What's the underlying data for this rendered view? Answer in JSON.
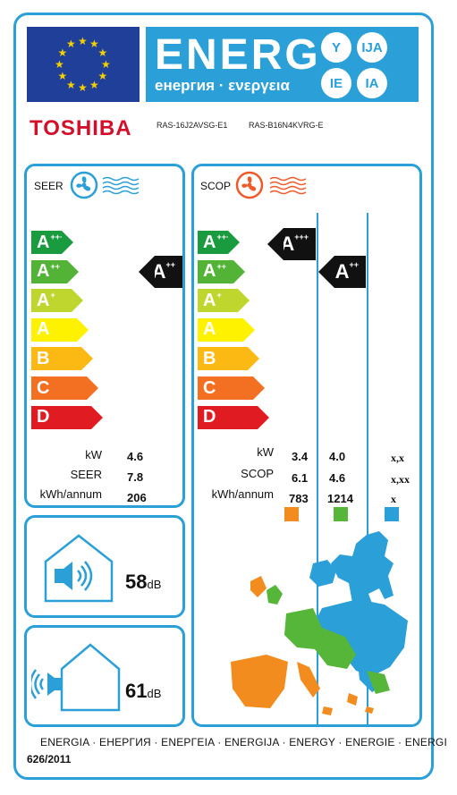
{
  "header": {
    "energy_word": "ENERG",
    "energy_sub": "енергия · ενεργεια",
    "lang_badges": [
      "Y",
      "IJA",
      "IE",
      "IA"
    ],
    "brand": "TOSHIBA",
    "model_indoor": "RAS-16J2AVSG-E1",
    "model_outdoor": "RAS-B16N4KVRG-E"
  },
  "colors": {
    "frame": "#2a9fd8",
    "eu_blue": "#1f3f99",
    "star": "#f5d000",
    "brand": "#d3102b",
    "class_colors": [
      "#1a9b3f",
      "#52b337",
      "#bfd62f",
      "#fff200",
      "#fdb913",
      "#f36f21",
      "#e11b22"
    ],
    "zone_warm": "#f28c1f",
    "zone_average": "#55b63a",
    "zone_colder": "#2a9fd8"
  },
  "classes": [
    {
      "letter": "A",
      "plus": "+++"
    },
    {
      "letter": "A",
      "plus": "++"
    },
    {
      "letter": "A",
      "plus": "+"
    },
    {
      "letter": "A",
      "plus": ""
    },
    {
      "letter": "B",
      "plus": ""
    },
    {
      "letter": "C",
      "plus": ""
    },
    {
      "letter": "D",
      "plus": ""
    }
  ],
  "seer": {
    "title": "SEER",
    "rating": {
      "letter": "A",
      "plus": "++"
    },
    "labels": [
      "kW",
      "SEER",
      "kWh/annum"
    ],
    "values": [
      "4.6",
      "7.8",
      "206"
    ],
    "fan_icon": "fan-icon",
    "wave_icon": "cool-waves-icon"
  },
  "scop": {
    "title": "SCOP",
    "ratings": [
      {
        "letter": "A",
        "plus": "+++"
      },
      {
        "letter": "A",
        "plus": "++"
      }
    ],
    "labels": [
      "kW",
      "SCOP",
      "kWh/annum"
    ],
    "warm_values": [
      "3.4",
      "6.1",
      "783"
    ],
    "average_values": [
      "4.0",
      "4.6",
      "1214"
    ],
    "colder_values": [
      "x,x",
      "x,xx",
      "x"
    ],
    "fan_icon": "heat-fan-icon",
    "wave_icon": "heat-waves-icon"
  },
  "noise": {
    "indoor_value": "58",
    "outdoor_value": "61",
    "unit": "dB",
    "indoor_icon": "indoor-speaker-icon",
    "outdoor_icon": "outdoor-speaker-icon"
  },
  "footer": {
    "energy_words": "ENERGIA · ЕНЕРГИЯ · ΕΝΕΡΓΕΙΑ · ENERGIJA · ENERGY · ENERGIE · ENERGI",
    "regulation": "626/2011"
  }
}
